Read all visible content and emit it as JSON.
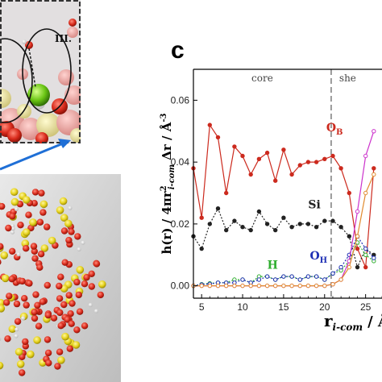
{
  "inset": {
    "label": "III."
  },
  "panel_label": "c",
  "chart_data": {
    "type": "line",
    "title": "",
    "xlabel": "r i-com / Å",
    "xlabel_main": "r",
    "xlabel_sub": "i-com",
    "xlabel_unit": "/ Å",
    "ylabel": "h(r) / 4πr²i-com Δr / Å⁻³",
    "ylabel_parts": {
      "lead": "h(r) / 4πr",
      "sup": "2",
      "sub": "i-com",
      "mid": "Δr  /  Å",
      "exp": "-3"
    },
    "xlim": [
      4,
      27
    ],
    "ylim": [
      -0.004,
      0.07
    ],
    "xticks": [
      "5",
      "10",
      "15",
      "20",
      "25"
    ],
    "yticks": [
      "0.00",
      "0.02",
      "0.04",
      "0.06"
    ],
    "regions": [
      {
        "label": "core"
      },
      {
        "label": "she"
      }
    ],
    "divider_x": 20.8,
    "series": [
      {
        "name": "O",
        "name_sub": "B",
        "color": "#cc2a1e",
        "x": [
          4,
          5,
          6,
          7,
          8,
          9,
          10,
          11,
          12,
          13,
          14,
          15,
          16,
          17,
          18,
          19,
          20,
          21,
          22,
          23,
          24,
          25,
          26
        ],
        "y": [
          0.038,
          0.022,
          0.052,
          0.048,
          0.03,
          0.045,
          0.042,
          0.036,
          0.041,
          0.043,
          0.034,
          0.044,
          0.036,
          0.039,
          0.04,
          0.04,
          0.041,
          0.042,
          0.038,
          0.03,
          0.012,
          0.006,
          0.038
        ]
      },
      {
        "name": "Si",
        "color": "#222222",
        "x": [
          4,
          5,
          6,
          7,
          8,
          9,
          10,
          11,
          12,
          13,
          14,
          15,
          16,
          17,
          18,
          19,
          20,
          21,
          22,
          23,
          24,
          25,
          26
        ],
        "y": [
          0.016,
          0.012,
          0.02,
          0.025,
          0.018,
          0.021,
          0.019,
          0.018,
          0.024,
          0.02,
          0.018,
          0.022,
          0.019,
          0.02,
          0.02,
          0.019,
          0.021,
          0.021,
          0.019,
          0.016,
          0.006,
          0.012,
          0.01
        ]
      },
      {
        "name": "H",
        "color": "#2fae2f",
        "x": [
          4,
          5,
          6,
          7,
          8,
          9,
          10,
          11,
          12,
          13,
          14,
          15,
          16,
          17,
          18,
          19,
          20,
          21,
          22,
          23,
          24,
          25,
          26
        ],
        "y": [
          0.0,
          0.0005,
          0.0008,
          0.001,
          0.001,
          0.002,
          0.002,
          0.001,
          0.003,
          0.003,
          0.002,
          0.003,
          0.003,
          0.002,
          0.003,
          0.003,
          0.002,
          0.004,
          0.005,
          0.008,
          0.014,
          0.01,
          0.008
        ]
      },
      {
        "name": "O",
        "name_sub": "H",
        "color": "#1e2fb4",
        "x": [
          4,
          5,
          6,
          7,
          8,
          9,
          10,
          11,
          12,
          13,
          14,
          15,
          16,
          17,
          18,
          19,
          20,
          21,
          22,
          23,
          24,
          25,
          26
        ],
        "y": [
          0.0,
          0.0004,
          0.0006,
          0.001,
          0.001,
          0.001,
          0.002,
          0.001,
          0.002,
          0.003,
          0.002,
          0.003,
          0.003,
          0.002,
          0.003,
          0.003,
          0.002,
          0.004,
          0.006,
          0.01,
          0.016,
          0.012,
          0.009
        ]
      },
      {
        "name": "",
        "color": "#cc33cc",
        "x": [
          4,
          5,
          6,
          7,
          8,
          9,
          10,
          11,
          12,
          13,
          14,
          15,
          16,
          17,
          18,
          19,
          20,
          21,
          22,
          23,
          24,
          25,
          26
        ],
        "y": [
          0.0,
          0.0,
          0.0,
          0.0,
          0.0,
          0.0,
          0.0,
          0.0,
          0.0,
          0.0,
          0.0,
          0.0,
          0.0,
          0.0,
          0.0,
          0.0,
          0.0,
          0.0005,
          0.002,
          0.008,
          0.024,
          0.042,
          0.05
        ]
      },
      {
        "name": "",
        "color": "#e08a2e",
        "x": [
          4,
          5,
          6,
          7,
          8,
          9,
          10,
          11,
          12,
          13,
          14,
          15,
          16,
          17,
          18,
          19,
          20,
          21,
          22,
          23,
          24,
          25,
          26
        ],
        "y": [
          0.0,
          0.0,
          0.0,
          0.0,
          0.0,
          0.0,
          0.0,
          0.0,
          0.0,
          0.0,
          0.0,
          0.0,
          0.0,
          0.0,
          0.0,
          0.0,
          0.0,
          0.0005,
          0.002,
          0.006,
          0.016,
          0.03,
          0.036
        ]
      }
    ],
    "colors": {
      "axis": "#000000",
      "divider": "#9a9a9a",
      "arrow": "#1f6fd6",
      "inset_border": "#333333"
    }
  }
}
